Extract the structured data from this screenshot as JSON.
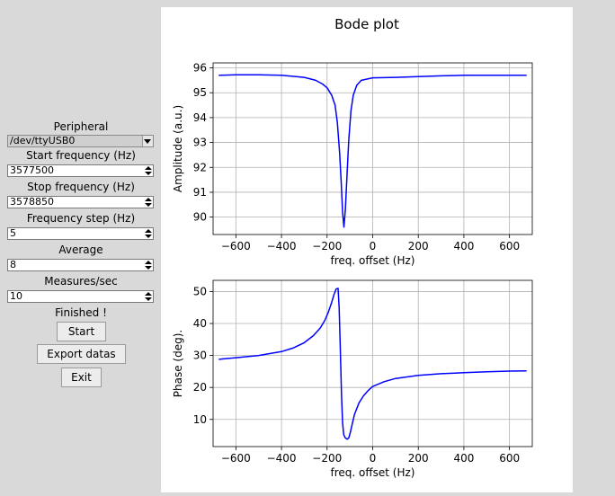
{
  "controls": {
    "peripheral_label": "Peripheral",
    "peripheral_value": "/dev/ttyUSB0",
    "start_freq_label": "Start frequency (Hz)",
    "start_freq_value": "3577500",
    "stop_freq_label": "Stop frequency (Hz)",
    "stop_freq_value": "3578850",
    "freq_step_label": "Frequency step (Hz)",
    "freq_step_value": "5",
    "average_label": "Average",
    "average_value": "8",
    "measures_label": "Measures/sec",
    "measures_value": "10",
    "status": "Finished !",
    "start_button": "Start",
    "export_button": "Export datas",
    "exit_button": "Exit"
  },
  "figure": {
    "title": "Bode plot"
  },
  "chart_data": [
    {
      "type": "line",
      "title": "",
      "xlabel": "freq. offset (Hz)",
      "ylabel": "Amplitude (a.u.)",
      "xlim": [
        -700,
        700
      ],
      "ylim": [
        89.3,
        96.2
      ],
      "xticks": [
        -600,
        -400,
        -200,
        0,
        200,
        400,
        600
      ],
      "xtick_labels": [
        "−600",
        "−400",
        "−200",
        "0",
        "200",
        "400",
        "600"
      ],
      "yticks": [
        90,
        91,
        92,
        93,
        94,
        95,
        96
      ],
      "grid": true,
      "series": [
        {
          "color": "#0000ff",
          "x": [
            -675,
            -600,
            -500,
            -400,
            -300,
            -250,
            -220,
            -200,
            -180,
            -165,
            -155,
            -145,
            -138,
            -132,
            -126,
            -120,
            -112,
            -105,
            -95,
            -85,
            -70,
            -50,
            0,
            100,
            200,
            300,
            400,
            500,
            600,
            675
          ],
          "y": [
            95.7,
            95.72,
            95.72,
            95.7,
            95.62,
            95.5,
            95.35,
            95.2,
            94.9,
            94.5,
            93.8,
            92.6,
            91.4,
            90.2,
            89.6,
            90.3,
            91.8,
            93.1,
            94.3,
            94.9,
            95.3,
            95.5,
            95.6,
            95.62,
            95.65,
            95.68,
            95.7,
            95.7,
            95.7,
            95.7
          ]
        }
      ]
    },
    {
      "type": "line",
      "title": "",
      "xlabel": "freq. offset (Hz)",
      "ylabel": "Phase (deg).",
      "xlim": [
        -700,
        700
      ],
      "ylim": [
        1.5,
        53.5
      ],
      "xticks": [
        -600,
        -400,
        -200,
        0,
        200,
        400,
        600
      ],
      "xtick_labels": [
        "−600",
        "−400",
        "−200",
        "0",
        "200",
        "400",
        "600"
      ],
      "yticks": [
        10,
        20,
        30,
        40,
        50
      ],
      "grid": true,
      "series": [
        {
          "color": "#0000ff",
          "x": [
            -675,
            -600,
            -500,
            -400,
            -350,
            -300,
            -260,
            -230,
            -210,
            -195,
            -180,
            -170,
            -160,
            -152,
            -147,
            -142,
            -137,
            -132,
            -127,
            -120,
            -112,
            -105,
            -98,
            -90,
            -80,
            -60,
            -40,
            -20,
            0,
            50,
            100,
            200,
            300,
            400,
            500,
            600,
            675
          ],
          "y": [
            28.8,
            29.3,
            30.0,
            31.2,
            32.3,
            34.0,
            36.2,
            38.6,
            41.0,
            43.5,
            46.6,
            49.0,
            50.8,
            51.0,
            45.0,
            32.0,
            18.0,
            9.0,
            5.2,
            4.2,
            3.8,
            4.2,
            6.0,
            8.5,
            11.5,
            15.2,
            17.4,
            19.0,
            20.3,
            21.8,
            22.8,
            23.8,
            24.3,
            24.6,
            24.9,
            25.1,
            25.2
          ]
        }
      ]
    }
  ]
}
